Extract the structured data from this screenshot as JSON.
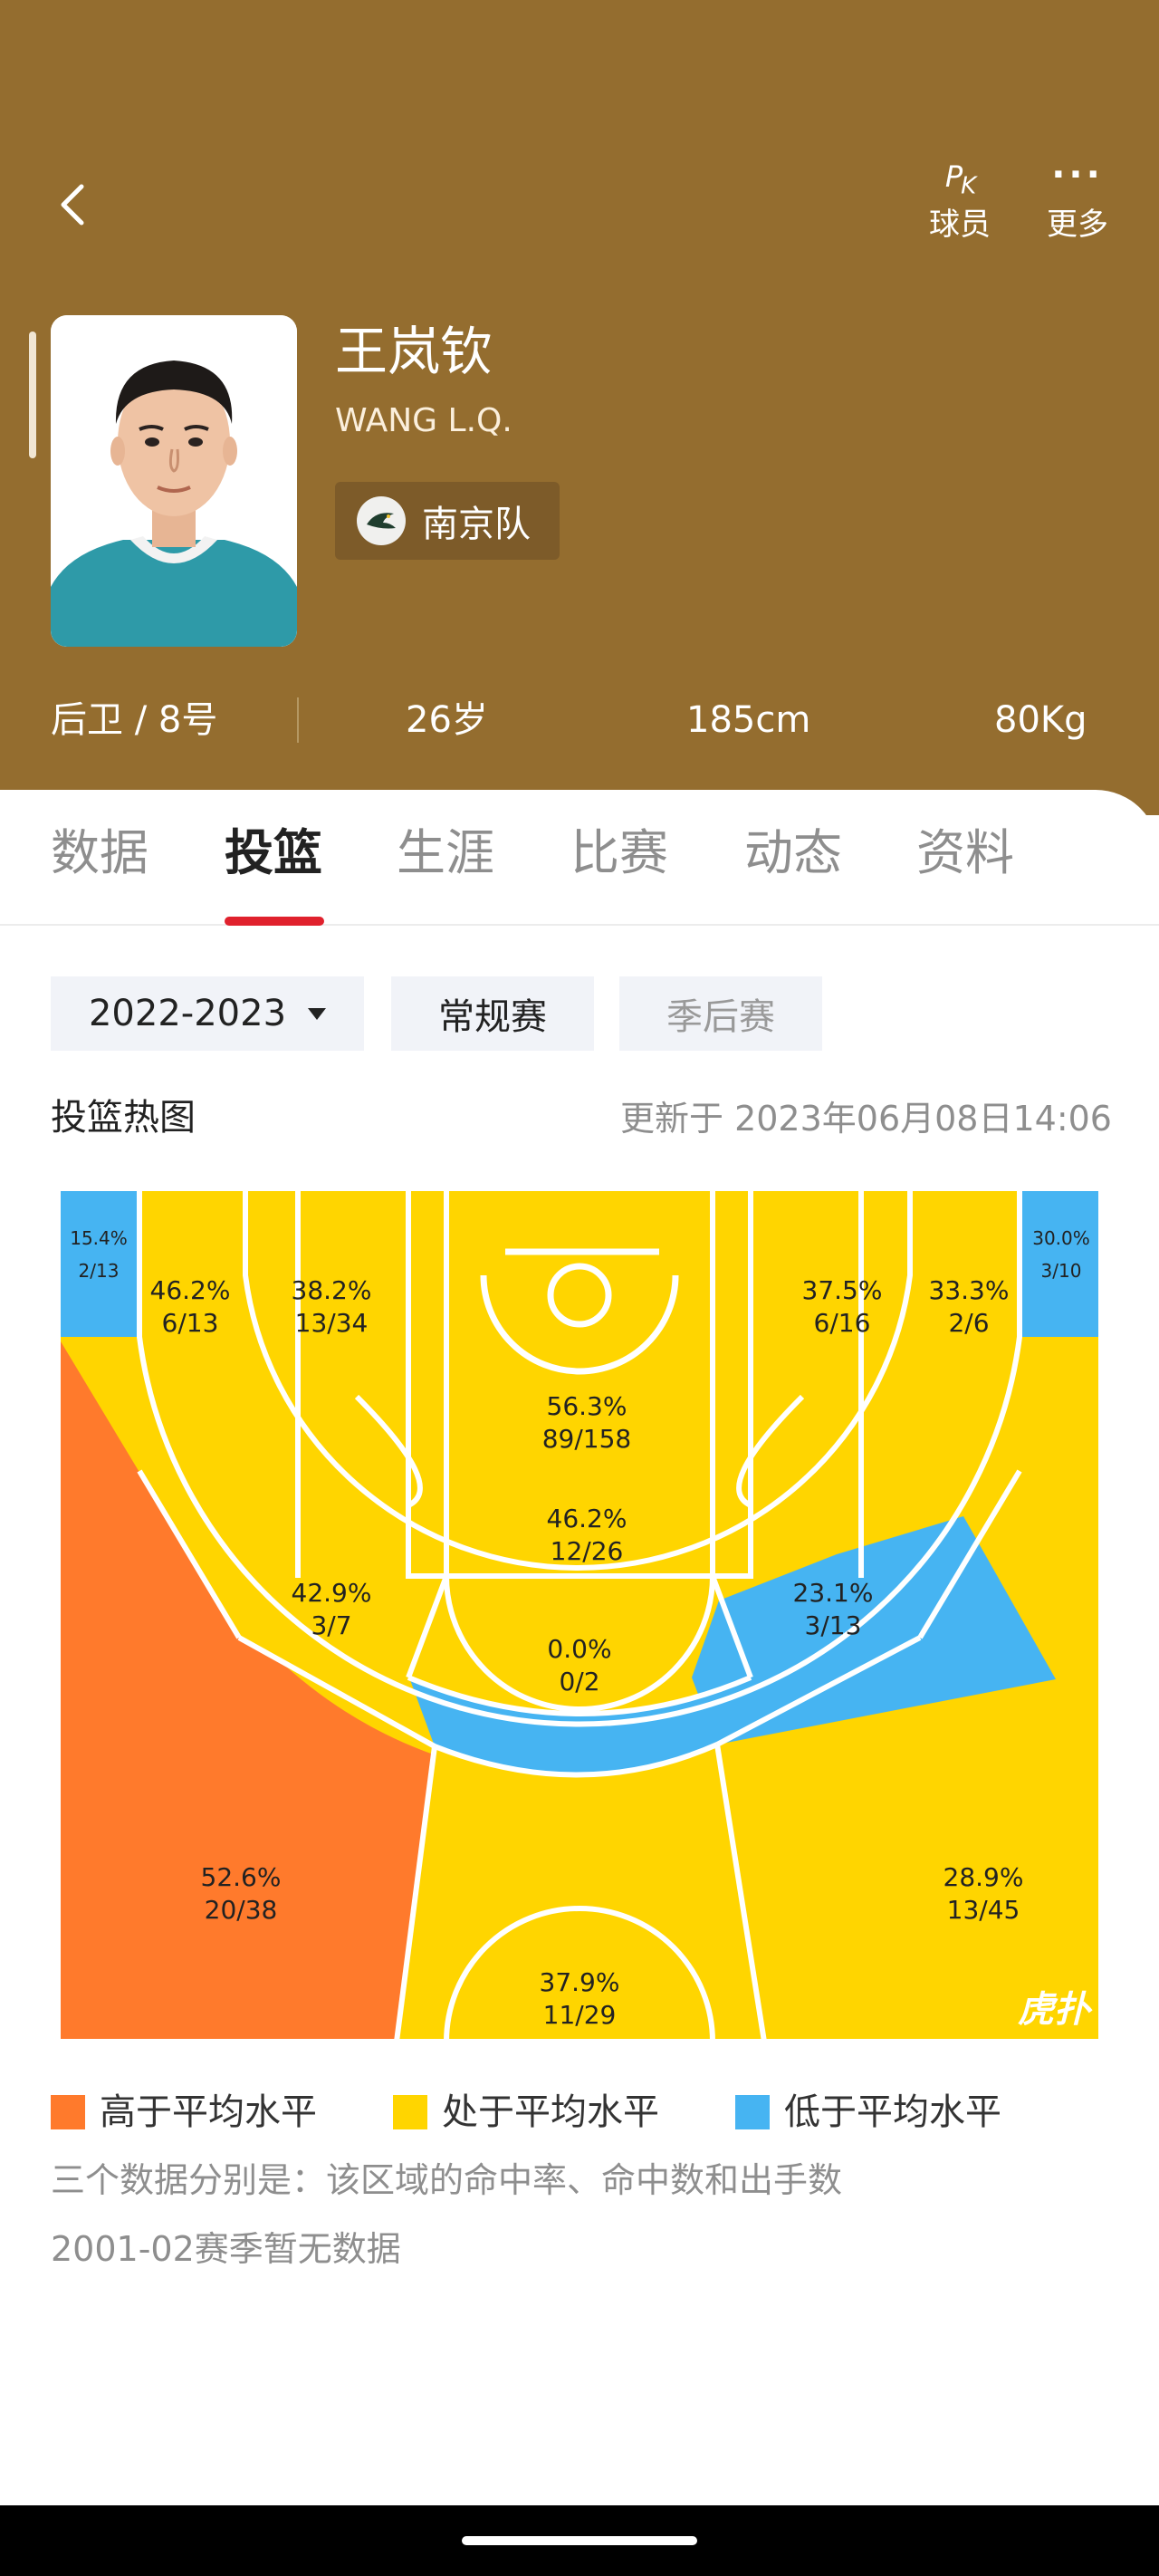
{
  "nav": {
    "pk_label": "球员",
    "more_label": "更多",
    "pk_icon": "P",
    "pk_icon_sub": "K"
  },
  "player": {
    "name_cn": "王岚钦",
    "name_en": "WANG L.Q.",
    "team": "南京队"
  },
  "info": {
    "position": "后卫 / 8号",
    "age": "26岁",
    "height": "185cm",
    "weight": "80Kg"
  },
  "tabs": [
    "数据",
    "投篮",
    "生涯",
    "比赛",
    "动态",
    "资料"
  ],
  "active_tab": "投篮",
  "filters": {
    "season": "2022-2023",
    "regular": "常规赛",
    "playoffs": "季后赛"
  },
  "section_title": "投篮热图",
  "updated": "更新于 2023年06月08日14:06",
  "colors": {
    "above": "#ff7a2c",
    "average": "#ffd500",
    "below": "#46b4f2",
    "header": "#946d2f",
    "accent": "#e0212d"
  },
  "zones": [
    {
      "id": "left-corner-three",
      "pct": "15.4%",
      "ratio": "2/13",
      "level": "below"
    },
    {
      "id": "left-baseline-mid",
      "pct": "46.2%",
      "ratio": "6/13",
      "level": "average"
    },
    {
      "id": "left-short-baseline",
      "pct": "38.2%",
      "ratio": "13/34",
      "level": "average"
    },
    {
      "id": "paint",
      "pct": "56.3%",
      "ratio": "89/158",
      "level": "average"
    },
    {
      "id": "right-short-baseline",
      "pct": "37.5%",
      "ratio": "6/16",
      "level": "average"
    },
    {
      "id": "right-baseline-mid",
      "pct": "33.3%",
      "ratio": "2/6",
      "level": "average"
    },
    {
      "id": "right-corner-three",
      "pct": "30.0%",
      "ratio": "3/10",
      "level": "below"
    },
    {
      "id": "free-throw-line",
      "pct": "46.2%",
      "ratio": "12/26",
      "level": "average"
    },
    {
      "id": "left-wing-mid",
      "pct": "42.9%",
      "ratio": "3/7",
      "level": "average"
    },
    {
      "id": "top-key-mid",
      "pct": "0.0%",
      "ratio": "0/2",
      "level": "below"
    },
    {
      "id": "right-wing-mid",
      "pct": "23.1%",
      "ratio": "3/13",
      "level": "below"
    },
    {
      "id": "left-wing-three",
      "pct": "52.6%",
      "ratio": "20/38",
      "level": "above"
    },
    {
      "id": "top-three",
      "pct": "37.9%",
      "ratio": "11/29",
      "level": "average"
    },
    {
      "id": "right-wing-three",
      "pct": "28.9%",
      "ratio": "13/45",
      "level": "average"
    }
  ],
  "watermark": "虎扑",
  "legend": {
    "above": "高于平均水平",
    "average": "处于平均水平",
    "below": "低于平均水平"
  },
  "notes": {
    "explain": "三个数据分别是：该区域的命中率、命中数和出手数",
    "no_data": "2001-02赛季暂无数据"
  }
}
